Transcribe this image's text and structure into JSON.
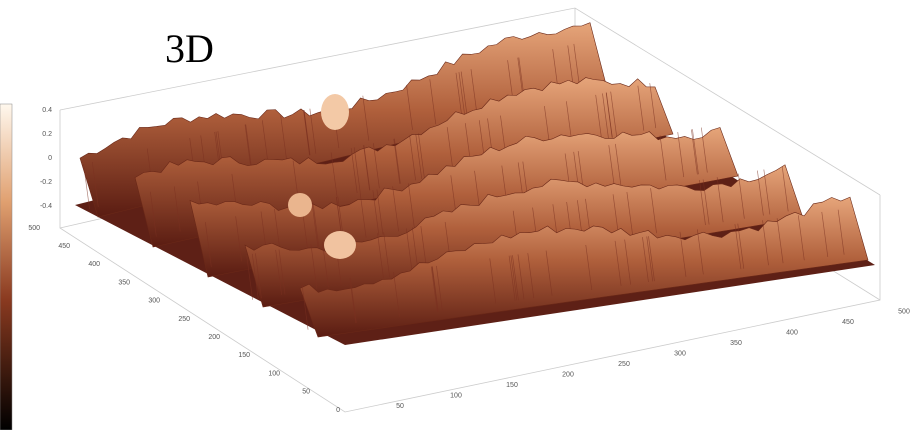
{
  "figure": {
    "title": "3D",
    "z_ticks": [
      "0.4",
      "0.2",
      "0",
      "-0.2",
      "-0.4"
    ],
    "y_ticks": [
      "500",
      "450",
      "400",
      "350",
      "300",
      "250",
      "200",
      "150",
      "100",
      "50",
      "0"
    ],
    "x_ticks": [
      "50",
      "100",
      "150",
      "200",
      "250",
      "300",
      "350",
      "400",
      "450",
      "500"
    ]
  }
}
